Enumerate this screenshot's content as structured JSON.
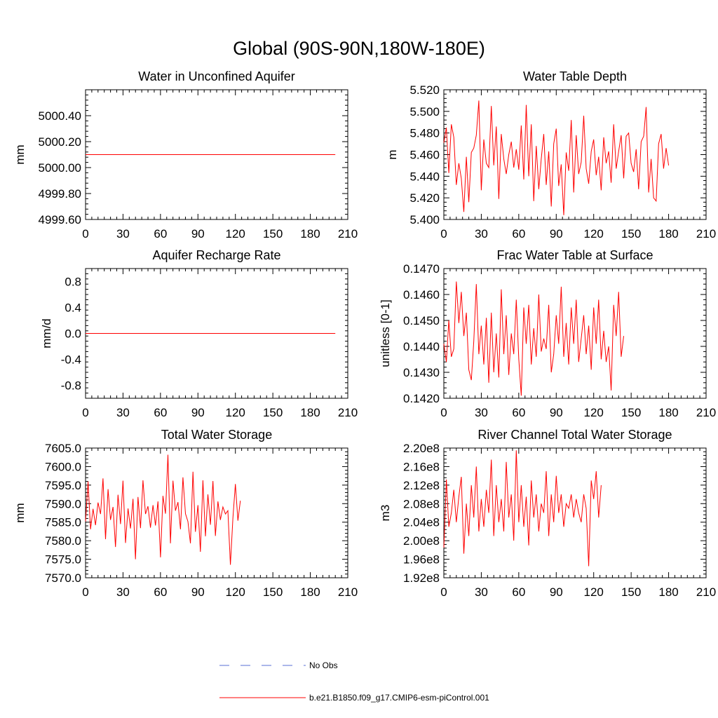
{
  "figure": {
    "title": "Global (90S-90N,180W-180E)"
  },
  "legend": {
    "entries": [
      {
        "label": "No Obs",
        "style": "dashed",
        "color": "#5a6fd6"
      },
      {
        "label": "b.e21.B1850.f09_g17.CMIP6-esm-piControl.001",
        "style": "solid",
        "color": "#ff0000"
      }
    ]
  },
  "chart_data": [
    {
      "type": "line",
      "title": "Water in Unconfined Aquifer",
      "ylabel": "mm",
      "xlabel": "",
      "xlim": [
        0,
        210
      ],
      "ylim": [
        4999.6,
        5000.6
      ],
      "xticks": [
        "0",
        "30",
        "60",
        "90",
        "120",
        "150",
        "180",
        "210"
      ],
      "xtick_values": [
        0,
        30,
        60,
        90,
        120,
        150,
        180,
        210
      ],
      "yticks": [
        "4999.60",
        "4999.80",
        "5000.00",
        "5000.20",
        "5000.40"
      ],
      "ytick_values": [
        4999.6,
        4999.8,
        5000.0,
        5000.2,
        5000.4
      ],
      "series": [
        {
          "name": "b.e21.B1850.f09_g17.CMIP6-esm-piControl.001",
          "color": "#ff0000",
          "x": [
            0,
            200
          ],
          "values": [
            5000.1,
            5000.1
          ]
        }
      ]
    },
    {
      "type": "line",
      "title": "Water Table Depth",
      "ylabel": "m",
      "xlabel": "",
      "xlim": [
        0,
        210
      ],
      "ylim": [
        5.4,
        5.52
      ],
      "xticks": [
        "0",
        "30",
        "60",
        "90",
        "120",
        "150",
        "180",
        "210"
      ],
      "xtick_values": [
        0,
        30,
        60,
        90,
        120,
        150,
        180,
        210
      ],
      "yticks": [
        "5.400",
        "5.420",
        "5.440",
        "5.460",
        "5.480",
        "5.500",
        "5.520"
      ],
      "ytick_values": [
        5.4,
        5.42,
        5.44,
        5.46,
        5.48,
        5.5,
        5.52
      ],
      "series": [
        {
          "name": "b.e21.B1850.f09_g17.CMIP6-esm-piControl.001",
          "color": "#ff0000",
          "x_start": 0,
          "x_step": 2,
          "values": [
            5.471,
            5.485,
            5.443,
            5.488,
            5.476,
            5.432,
            5.452,
            5.438,
            5.407,
            5.458,
            5.416,
            5.462,
            5.466,
            5.478,
            5.51,
            5.427,
            5.474,
            5.452,
            5.448,
            5.505,
            5.45,
            5.486,
            5.419,
            5.479,
            5.456,
            5.442,
            5.46,
            5.472,
            5.448,
            5.465,
            5.446,
            5.487,
            5.437,
            5.506,
            5.44,
            5.488,
            5.417,
            5.468,
            5.428,
            5.456,
            5.479,
            5.432,
            5.463,
            5.412,
            5.47,
            5.484,
            5.431,
            5.451,
            5.404,
            5.462,
            5.445,
            5.492,
            5.425,
            5.478,
            5.442,
            5.453,
            5.496,
            5.447,
            5.433,
            5.463,
            5.474,
            5.441,
            5.458,
            5.427,
            5.476,
            5.452,
            5.463,
            5.434,
            5.488,
            5.447,
            5.463,
            5.478,
            5.438,
            5.477,
            5.48,
            5.452,
            5.444,
            5.465,
            5.428,
            5.472,
            5.477,
            5.504,
            5.425,
            5.456,
            5.42,
            5.417,
            5.47,
            5.479,
            5.447,
            5.466,
            5.45
          ]
        }
      ]
    },
    {
      "type": "line",
      "title": "Aquifer Recharge Rate",
      "ylabel": "mm/d",
      "xlabel": "",
      "xlim": [
        0,
        210
      ],
      "ylim": [
        -1.0,
        1.0
      ],
      "xticks": [
        "0",
        "30",
        "60",
        "90",
        "120",
        "150",
        "180",
        "210"
      ],
      "xtick_values": [
        0,
        30,
        60,
        90,
        120,
        150,
        180,
        210
      ],
      "yticks": [
        "-0.8",
        "-0.4",
        "0.0",
        "0.4",
        "0.8"
      ],
      "ytick_values": [
        -0.8,
        -0.4,
        0.0,
        0.4,
        0.8
      ],
      "series": [
        {
          "name": "b.e21.B1850.f09_g17.CMIP6-esm-piControl.001",
          "color": "#ff0000",
          "x": [
            0,
            200
          ],
          "values": [
            0.0,
            0.0
          ]
        }
      ]
    },
    {
      "type": "line",
      "title": "Frac Water Table at Surface",
      "ylabel": "unitless [0-1]",
      "xlabel": "",
      "xlim": [
        0,
        210
      ],
      "ylim": [
        0.142,
        0.147
      ],
      "xticks": [
        "0",
        "30",
        "60",
        "90",
        "120",
        "150",
        "180",
        "210"
      ],
      "xtick_values": [
        0,
        30,
        60,
        90,
        120,
        150,
        180,
        210
      ],
      "yticks": [
        "0.1420",
        "0.1430",
        "0.1440",
        "0.1450",
        "0.1460",
        "0.1470"
      ],
      "ytick_values": [
        0.142,
        0.143,
        0.144,
        0.145,
        0.146,
        0.147
      ],
      "series": [
        {
          "name": "b.e21.B1850.f09_g17.CMIP6-esm-piControl.001",
          "color": "#ff0000",
          "x_start": 0,
          "x_step": 2,
          "values": [
            0.1441,
            0.1434,
            0.145,
            0.1436,
            0.1439,
            0.1465,
            0.1449,
            0.1461,
            0.1444,
            0.1453,
            0.1431,
            0.1427,
            0.1442,
            0.1464,
            0.1437,
            0.1448,
            0.1433,
            0.1451,
            0.1426,
            0.1453,
            0.143,
            0.1445,
            0.1428,
            0.1462,
            0.1437,
            0.1452,
            0.1429,
            0.1445,
            0.1437,
            0.1458,
            0.1435,
            0.1421,
            0.1455,
            0.1441,
            0.1456,
            0.1433,
            0.1447,
            0.1436,
            0.146,
            0.1438,
            0.1443,
            0.1439,
            0.1456,
            0.143,
            0.1437,
            0.1452,
            0.1441,
            0.1463,
            0.1436,
            0.1449,
            0.1433,
            0.1455,
            0.1441,
            0.1458,
            0.1434,
            0.1443,
            0.1452,
            0.1437,
            0.1448,
            0.1431,
            0.1455,
            0.1441,
            0.1458,
            0.1435,
            0.1446,
            0.1434,
            0.144,
            0.1423,
            0.1456,
            0.1444,
            0.1461,
            0.1436,
            0.1444
          ]
        }
      ]
    },
    {
      "type": "line",
      "title": "Total Water Storage",
      "ylabel": "mm",
      "xlabel": "",
      "xlim": [
        0,
        210
      ],
      "ylim": [
        7570.0,
        7605.0
      ],
      "xticks": [
        "0",
        "30",
        "60",
        "90",
        "120",
        "150",
        "180",
        "210"
      ],
      "xtick_values": [
        0,
        30,
        60,
        90,
        120,
        150,
        180,
        210
      ],
      "yticks": [
        "7570.0",
        "7575.0",
        "7580.0",
        "7585.0",
        "7590.0",
        "7595.0",
        "7600.0",
        "7605.0"
      ],
      "ytick_values": [
        7570,
        7575,
        7580,
        7585,
        7590,
        7595,
        7600,
        7605
      ],
      "series": [
        {
          "name": "b.e21.B1850.f09_g17.CMIP6-esm-piControl.001",
          "color": "#ff0000",
          "x_start": 0,
          "x_step": 2,
          "values": [
            7585.2,
            7596.0,
            7583.1,
            7588.6,
            7584.2,
            7590.3,
            7587.2,
            7596.8,
            7580.4,
            7593.9,
            7585.6,
            7589.1,
            7578.3,
            7592.4,
            7584.5,
            7596.2,
            7579.4,
            7588.7,
            7583.3,
            7591.3,
            7575.0,
            7591.8,
            7583.4,
            7596.3,
            7587.2,
            7589.3,
            7583.5,
            7589.6,
            7584.1,
            7590.6,
            7575.5,
            7592.1,
            7587.3,
            7603.2,
            7579.3,
            7596.2,
            7588.1,
            7590.4,
            7583.1,
            7597.1,
            7587.3,
            7585.2,
            7579.3,
            7598.6,
            7582.4,
            7589.6,
            7577.0,
            7596.3,
            7581.2,
            7592.5,
            7584.3,
            7596.1,
            7581.3,
            7590.6,
            7585.6,
            7589.1,
            7587.2,
            7588.1,
            7573.5,
            7586.2,
            7595.3,
            7585.4,
            7590.8
          ]
        }
      ]
    },
    {
      "type": "line",
      "title": "River Channel Total Water Storage",
      "ylabel": "m3",
      "xlabel": "",
      "xlim": [
        0,
        210
      ],
      "ylim": [
        192000000.0,
        220000000.0
      ],
      "xticks": [
        "0",
        "30",
        "60",
        "90",
        "120",
        "150",
        "180",
        "210"
      ],
      "xtick_values": [
        0,
        30,
        60,
        90,
        120,
        150,
        180,
        210
      ],
      "yticks": [
        "1.92e8",
        "1.96e8",
        "2.00e8",
        "2.04e8",
        "2.08e8",
        "2.12e8",
        "2.16e8",
        "2.20e8"
      ],
      "ytick_values": [
        192000000.0,
        196000000.0,
        200000000.0,
        204000000.0,
        208000000.0,
        212000000.0,
        216000000.0,
        220000000.0
      ],
      "series": [
        {
          "name": "b.e21.B1850.f09_g17.CMIP6-esm-piControl.001",
          "color": "#ff0000",
          "x_start": 0,
          "x_step": 2,
          "values": [
            198500000.0,
            213200000.0,
            203000000.0,
            206000000.0,
            211000000.0,
            204000000.0,
            209500000.0,
            213800000.0,
            197200000.0,
            208000000.0,
            201000000.0,
            212000000.0,
            205000000.0,
            216000000.0,
            202000000.0,
            209000000.0,
            203000000.0,
            211000000.0,
            206000000.0,
            217500000.0,
            201000000.0,
            212000000.0,
            204000000.0,
            209000000.0,
            202000000.0,
            217000000.0,
            205000000.0,
            210000000.0,
            200000000.0,
            219500000.0,
            204000000.0,
            212000000.0,
            203000000.0,
            209500000.0,
            199000000.0,
            213000000.0,
            205000000.0,
            210000000.0,
            202000000.0,
            208000000.0,
            206000000.0,
            215000000.0,
            201000000.0,
            210000000.0,
            204000000.0,
            214000000.0,
            206000000.0,
            210000000.0,
            203000000.0,
            208000000.0,
            207000000.0,
            210000000.0,
            205000000.0,
            209000000.0,
            206000000.0,
            204000000.0,
            210000000.0,
            207000000.0,
            194500000.0,
            213000000.0,
            209000000.0,
            215000000.0,
            205000000.0,
            212000000.0
          ]
        }
      ]
    }
  ]
}
